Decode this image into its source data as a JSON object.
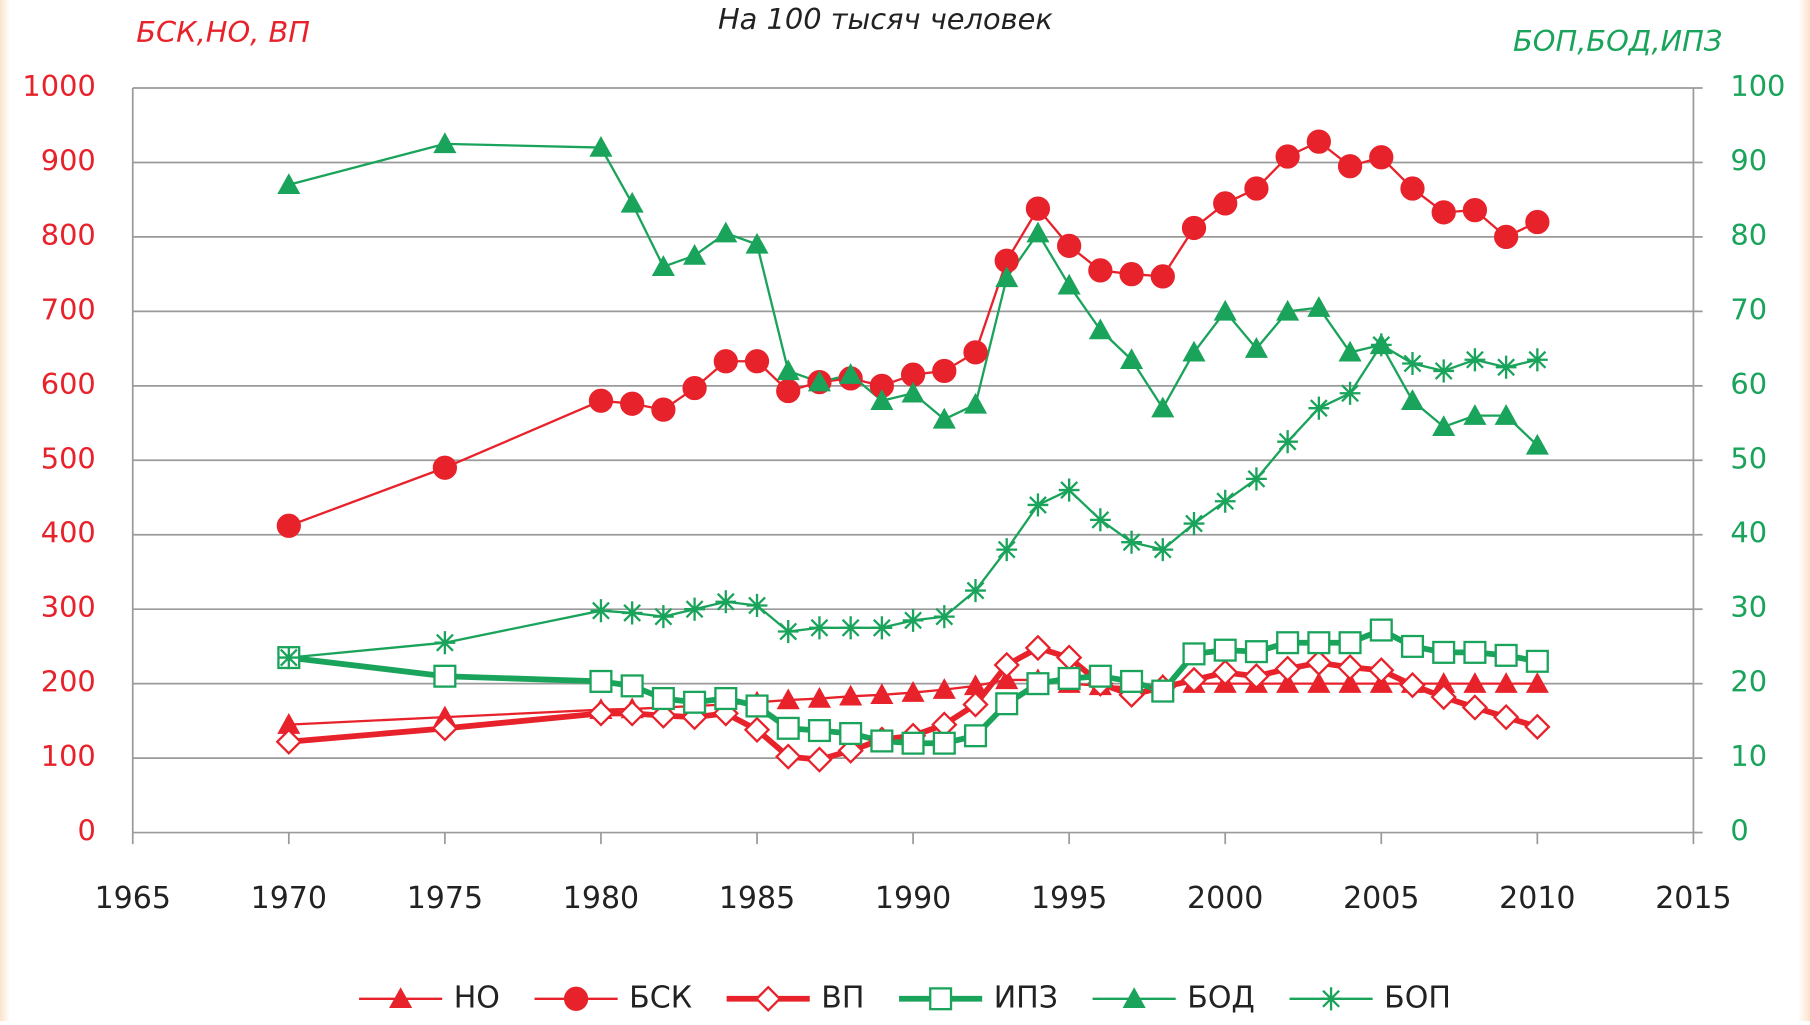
{
  "chart_data": {
    "type": "line",
    "title": "На 100 тысяч  человек",
    "y_label": "БСК,НО, ВП",
    "y2_label": "БОП,БОД,ИПЗ",
    "x": [
      1970,
      1975,
      1980,
      1981,
      1982,
      1983,
      1984,
      1985,
      1986,
      1987,
      1988,
      1989,
      1990,
      1991,
      1992,
      1993,
      1994,
      1995,
      1996,
      1997,
      1998,
      1999,
      2000,
      2001,
      2002,
      2003,
      2004,
      2005,
      2006,
      2007,
      2008,
      2009,
      2010
    ],
    "xlim": [
      1965,
      2015
    ],
    "xticks": [
      1965,
      1970,
      1975,
      1980,
      1985,
      1990,
      1995,
      2000,
      2005,
      2010,
      2015
    ],
    "ylim": [
      0,
      1000
    ],
    "yticks": [
      0,
      100,
      200,
      300,
      400,
      500,
      600,
      700,
      800,
      900,
      1000
    ],
    "y2lim": [
      0,
      100
    ],
    "y2ticks": [
      0,
      10,
      20,
      30,
      40,
      50,
      60,
      70,
      80,
      90,
      100
    ],
    "grid": true,
    "legend": "bottom",
    "series": [
      {
        "name": "НО",
        "color": "#e8222b",
        "marker": "triangle",
        "line_width": 2,
        "values": [
          145,
          155,
          165,
          166,
          168,
          170,
          172,
          175,
          178,
          180,
          183,
          185,
          188,
          192,
          197,
          205,
          205,
          200,
          197,
          195,
          198,
          200,
          200,
          200,
          200,
          200,
          200,
          200,
          200,
          200,
          200,
          200,
          200
        ]
      },
      {
        "name": "БСК",
        "color": "#e8222b",
        "marker": "circle",
        "line_width": 2,
        "values": [
          412,
          490,
          580,
          576,
          568,
          597,
          633,
          633,
          593,
          605,
          610,
          600,
          615,
          620,
          645,
          768,
          838,
          788,
          755,
          750,
          747,
          812,
          845,
          865,
          908,
          928,
          895,
          907,
          865,
          833,
          836,
          800,
          820
        ]
      },
      {
        "name": "ВП",
        "color": "#e8222b",
        "marker": "diamond",
        "line_width": 5,
        "values": [
          122,
          140,
          160,
          160,
          157,
          155,
          160,
          138,
          102,
          98,
          110,
          125,
          130,
          145,
          172,
          225,
          248,
          235,
          200,
          185,
          195,
          205,
          215,
          210,
          220,
          228,
          222,
          218,
          198,
          182,
          168,
          155,
          142
        ]
      },
      {
        "name": "ИПЗ",
        "color": "#1aa35a",
        "marker": "square",
        "line_width": 5,
        "axis": "y2",
        "values": [
          23.5,
          21,
          20.3,
          19.7,
          18,
          17.5,
          18,
          17,
          14,
          13.7,
          13.3,
          12.3,
          12,
          12,
          13,
          17.3,
          20,
          20.7,
          21,
          20.3,
          19,
          24,
          24.5,
          24.3,
          25.5,
          25.5,
          25.5,
          27.2,
          25,
          24.2,
          24.2,
          23.8,
          23
        ]
      },
      {
        "name": "БОД",
        "color": "#1aa35a",
        "marker": "triangle",
        "line_width": 2,
        "axis": "y2",
        "values": [
          87,
          92.5,
          92,
          84.5,
          76,
          77.5,
          80.5,
          79,
          62,
          60.5,
          61.5,
          58,
          59,
          55.5,
          57.5,
          74.5,
          80.5,
          73.5,
          67.5,
          63.5,
          57,
          64.5,
          70,
          65,
          70,
          70.5,
          64.5,
          65.5,
          58,
          54.5,
          56,
          56,
          52
        ]
      },
      {
        "name": "БОП",
        "color": "#1aa35a",
        "marker": "star",
        "line_width": 2,
        "axis": "y2",
        "values": [
          23.5,
          25.5,
          29.8,
          29.5,
          29,
          30,
          31,
          30.5,
          27,
          27.5,
          27.5,
          27.5,
          28.5,
          29,
          32.5,
          38,
          44,
          46,
          42,
          39,
          38,
          41.5,
          44.5,
          47.5,
          52.5,
          57,
          59,
          65.5,
          63,
          62,
          63.5,
          62.5,
          63.5
        ]
      }
    ]
  }
}
